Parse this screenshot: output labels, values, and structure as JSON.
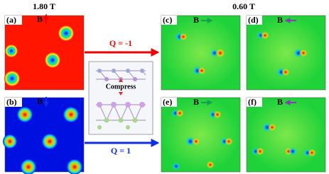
{
  "header": {
    "left": "1.80 T",
    "right": "0.60 T"
  },
  "panels": [
    {
      "label": "(a)",
      "field": "B"
    },
    {
      "label": "(b)",
      "field": "B"
    },
    {
      "label": "(c)",
      "field": "B"
    },
    {
      "label": "(d)",
      "field": "B"
    },
    {
      "label": "(e)",
      "field": "B"
    },
    {
      "label": "(f)",
      "field": "B"
    }
  ],
  "arrows": [
    {
      "label": "Q = -1"
    },
    {
      "label": "Q = 1"
    }
  ],
  "inset": {
    "label": "Compress"
  }
}
